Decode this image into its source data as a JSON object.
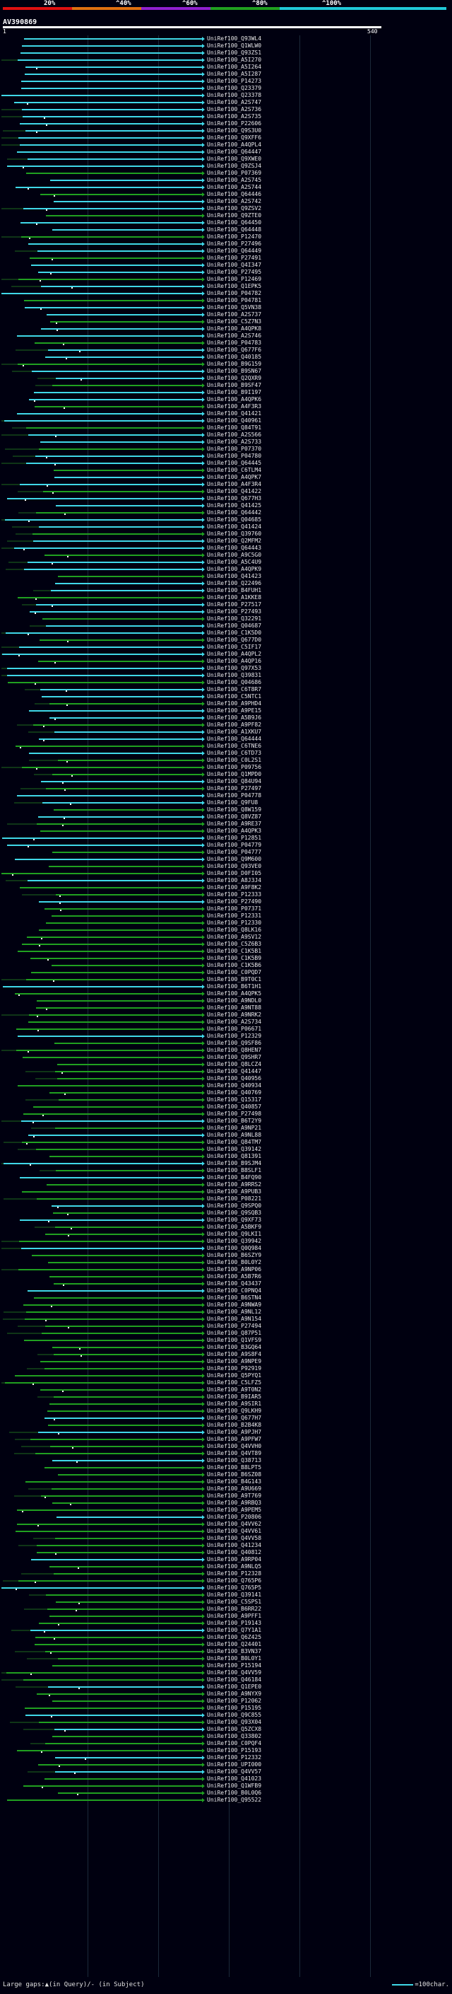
{
  "scale": {
    "labels": [
      "20%",
      "^40%",
      "^60%",
      "^80%",
      "^100%"
    ],
    "colors": [
      "#e01010",
      "#e07010",
      "#9020d0",
      "#20a020",
      "#20c8d8"
    ]
  },
  "query": {
    "id": "AV390869",
    "start": "1",
    "end": "540"
  },
  "colors": {
    "identity_high": "#40d8e8",
    "identity_mid": "#20a020",
    "background": "#000010",
    "gap_marker": "#ffffff"
  },
  "hits": [
    "UniRef100_Q93WL4",
    "UniRef100_Q1WLW0",
    "UniRef100_Q93ZS1",
    "UniRef100_A5I270",
    "UniRef100_A5I264",
    "UniRef100_A5I287",
    "UniRef100_P14273",
    "UniRef100_Q23379",
    "UniRef100_Q23378",
    "UniRef100_A2S747",
    "UniRef100_A2S736",
    "UniRef100_A2S735",
    "UniRef100_P22606",
    "UniRef100_Q9S3U0",
    "UniRef100_Q9XFF6",
    "UniRef100_A4QPL4",
    "UniRef100_Q64447",
    "UniRef100_Q9XWE0",
    "UniRef100_Q9ZSJ4",
    "UniRef100_P07369",
    "UniRef100_A2S745",
    "UniRef100_A2S744",
    "UniRef100_Q64446",
    "UniRef100_A2S742",
    "UniRef100_Q9ZSV2",
    "UniRef100_Q9ZTE0",
    "UniRef100_Q64450",
    "UniRef100_Q64448",
    "UniRef100_P12470",
    "UniRef100_P27496",
    "UniRef100_Q64449",
    "UniRef100_P27491",
    "UniRef100_Q4I347",
    "UniRef100_P27495",
    "UniRef100_P12469",
    "UniRef100_Q1EPK5",
    "UniRef100_P04782",
    "UniRef100_P04781",
    "UniRef100_Q5VN38",
    "UniRef100_A2S737",
    "UniRef100_C5Z7N3",
    "UniRef100_A4QPK8",
    "UniRef100_A2S746",
    "UniRef100_P04783",
    "UniRef100_Q677F6",
    "UniRef100_Q40185",
    "UniRef100_B9G159",
    "UniRef100_B9SN67",
    "UniRef100_Q2QXR9",
    "UniRef100_B9SF47",
    "UniRef100_B9I197",
    "UniRef100_A4QPK6",
    "UniRef100_A4F3R3",
    "UniRef100_Q41421",
    "UniRef100_Q40961",
    "UniRef100_Q84T91",
    "UniRef100_A2S566",
    "UniRef100_A2S733",
    "UniRef100_P07370",
    "UniRef100_P04780",
    "UniRef100_Q64445",
    "UniRef100_C6TLM4",
    "UniRef100_A4QPK7",
    "UniRef100_A4F3R4",
    "UniRef100_Q41422",
    "UniRef100_Q677H3",
    "UniRef100_Q41425",
    "UniRef100_Q64442",
    "UniRef100_Q04685",
    "UniRef100_Q41424",
    "UniRef100_Q39760",
    "UniRef100_Q2MFM2",
    "UniRef100_Q64443",
    "UniRef100_A9C5G0",
    "UniRef100_A5C4U9",
    "UniRef100_A4QPK9",
    "UniRef100_Q41423",
    "UniRef100_Q22496",
    "UniRef100_B4FUH1",
    "UniRef100_A1KKE8",
    "UniRef100_P27517",
    "UniRef100_P27493",
    "UniRef100_Q32291",
    "UniRef100_Q04687",
    "UniRef100_C1K5D0",
    "UniRef100_Q677D0",
    "UniRef100_C5IF17",
    "UniRef100_A4QPL2",
    "UniRef100_A4QP16",
    "UniRef100_Q97X53",
    "UniRef100_Q39831",
    "UniRef100_Q04686",
    "UniRef100_C6T8R7",
    "UniRef100_C5NTC1",
    "UniRef100_A9PHD4",
    "UniRef100_A9PE15",
    "UniRef100_A5B9J6",
    "UniRef100_A9PF82",
    "UniRef100_A1XKU7",
    "UniRef100_Q64444",
    "UniRef100_C6TNE6",
    "UniRef100_C6TD73",
    "UniRef100_C0L2S1",
    "UniRef100_P09756",
    "UniRef100_Q1MPD0",
    "UniRef100_Q84U94",
    "UniRef100_P27497",
    "UniRef100_P04778",
    "UniRef100_Q9FU8",
    "UniRef100_Q8W159",
    "UniRef100_Q8VZ87",
    "UniRef100_A9RE37",
    "UniRef100_A4QPK3",
    "UniRef100_P12851",
    "UniRef100_P04779",
    "UniRef100_P04777",
    "UniRef100_Q9M600",
    "UniRef100_Q93VE0",
    "UniRef100_D0FI05",
    "UniRef100_A8J3J4",
    "UniRef100_A9F8K2",
    "UniRef100_P12333",
    "UniRef100_P27490",
    "UniRef100_P07371",
    "UniRef100_P12331",
    "UniRef100_P12330",
    "UniRef100_Q8LK16",
    "UniRef100_A9SV12",
    "UniRef100_C5Z6B3",
    "UniRef100_C1K5B1",
    "UniRef100_C1K5B9",
    "UniRef100_C1K5B6",
    "UniRef100_C0PQD7",
    "UniRef100_B9T0C1",
    "UniRef100_B6T1H1",
    "UniRef100_A4QPK5",
    "UniRef100_A9NDL0",
    "UniRef100_A9NT88",
    "UniRef100_A9NRK2",
    "UniRef100_A2S734",
    "UniRef100_P06671",
    "UniRef100_P12329",
    "UniRef100_Q9SF86",
    "UniRef100_Q8HEN7",
    "UniRef100_Q9SHR7",
    "UniRef100_Q8LCZ4",
    "UniRef100_Q41447",
    "UniRef100_Q40956",
    "UniRef100_Q40934",
    "UniRef100_Q40769",
    "UniRef100_Q15317",
    "UniRef100_Q40857",
    "UniRef100_P27498",
    "UniRef100_B6T2Y9",
    "UniRef100_A9NP21",
    "UniRef100_A9NL88",
    "UniRef100_Q84TM7",
    "UniRef100_Q39142",
    "UniRef100_Q81391",
    "UniRef100_B9SJM4",
    "UniRef100_B8SLF1",
    "UniRef100_B4FQ90",
    "UniRef100_A9RRS2",
    "UniRef100_A9PUB3",
    "UniRef100_P08221",
    "UniRef100_Q9SPQ0",
    "UniRef100_Q9SQB3",
    "UniRef100_Q9XF73",
    "UniRef100_A5BKF9",
    "UniRef100_Q9LKI1",
    "UniRef100_Q39942",
    "UniRef100_Q0Q984",
    "UniRef100_B6SZY9",
    "UniRef100_B0L0Y2",
    "UniRef100_A9NP06",
    "UniRef100_A5B7R6",
    "UniRef100_Q43437",
    "UniRef100_C0PNQ4",
    "UniRef100_B6STN4",
    "UniRef100_A9NWA9",
    "UniRef100_A9NL12",
    "UniRef100_A9N154",
    "UniRef100_P27494",
    "UniRef100_Q87P51",
    "UniRef100_Q1VFS9",
    "UniRef100_B3GQ64",
    "UniRef100_A9S8F4",
    "UniRef100_A9NPE9",
    "UniRef100_P92919",
    "UniRef100_Q5PYQ1",
    "UniRef100_C5LFZ5",
    "UniRef100_A9T0N2",
    "UniRef100_B9IAR5",
    "UniRef100_A9SIR1",
    "UniRef100_Q9LKH9",
    "UniRef100_Q677H7",
    "UniRef100_B2B4K8",
    "UniRef100_A9PJH7",
    "UniRef100_A9PFW7",
    "UniRef100_Q4VVH0",
    "UniRef100_Q4VT89",
    "UniRef100_Q38713",
    "UniRef100_B8LPT5",
    "UniRef100_B6SZ08",
    "UniRef100_B4G143",
    "UniRef100_A9U669",
    "UniRef100_A9T769",
    "UniRef100_A9RBQ3",
    "UniRef100_A9PEM5",
    "UniRef100_P20806",
    "UniRef100_Q4VV62",
    "UniRef100_Q4VV61",
    "UniRef100_Q4VV58",
    "UniRef100_Q41234",
    "UniRef100_Q40812",
    "UniRef100_A9RP04",
    "UniRef100_A9NLQ5",
    "UniRef100_P12328",
    "UniRef100_Q765P6",
    "UniRef100_Q765P5",
    "UniRef100_Q39141",
    "UniRef100_C5SPS1",
    "UniRef100_B6RR22",
    "UniRef100_A9PFF1",
    "UniRef100_P19143",
    "UniRef100_Q7Y1A1",
    "UniRef100_Q6Z425",
    "UniRef100_Q24401",
    "UniRef100_B3VN37",
    "UniRef100_B0L0Y1",
    "UniRef100_P15194",
    "UniRef100_Q4VV59",
    "UniRef100_Q46184",
    "UniRef100_Q1EPE0",
    "UniRef100_A9NYX9",
    "UniRef100_P12062",
    "UniRef100_P15195",
    "UniRef100_Q9C855",
    "UniRef100_Q93X04",
    "UniRef100_Q5ZCX8",
    "UniRef100_Q33802",
    "UniRef100_C0PQF4",
    "UniRef100_P15193",
    "UniRef100_P12332",
    "UniRef100_UPI000",
    "UniRef100_Q4VV57",
    "UniRef100_Q41023",
    "UniRef100_Q1WFB9",
    "UniRef100_B0L0Q6",
    "UniRef100_Q95522"
  ],
  "legend": {
    "text": "Large gaps:▲(in Query)/- (in Subject)",
    "scale_text": "=100char."
  }
}
